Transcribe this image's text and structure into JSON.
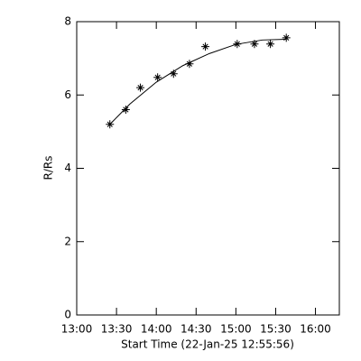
{
  "chart_data": {
    "type": "scatter",
    "xlabel": "Start Time (22-Jan-25 12:55:56)",
    "ylabel": "R/Rs",
    "xlim": [
      "13:00",
      "16:18"
    ],
    "xticks": [
      "13:00",
      "13:30",
      "14:00",
      "14:30",
      "15:00",
      "15:30",
      "16:00"
    ],
    "ylim": [
      0,
      8
    ],
    "yticks": [
      0,
      2,
      4,
      6,
      8
    ],
    "color": "#000000",
    "series": [
      {
        "x": [
          "13:25",
          "13:37",
          "13:48",
          "14:01",
          "14:13",
          "14:25",
          "14:37",
          "15:01",
          "15:14",
          "15:26",
          "15:38"
        ],
        "values": [
          5.2,
          5.6,
          6.2,
          6.48,
          6.58,
          6.85,
          7.32,
          7.39,
          7.39,
          7.39,
          7.56
        ]
      },
      {
        "x": [
          "13:25",
          "13:40",
          "14:00",
          "14:20",
          "14:40",
          "15:00",
          "15:20",
          "15:38"
        ],
        "values": [
          5.2,
          5.75,
          6.35,
          6.8,
          7.13,
          7.38,
          7.5,
          7.52
        ]
      }
    ]
  }
}
